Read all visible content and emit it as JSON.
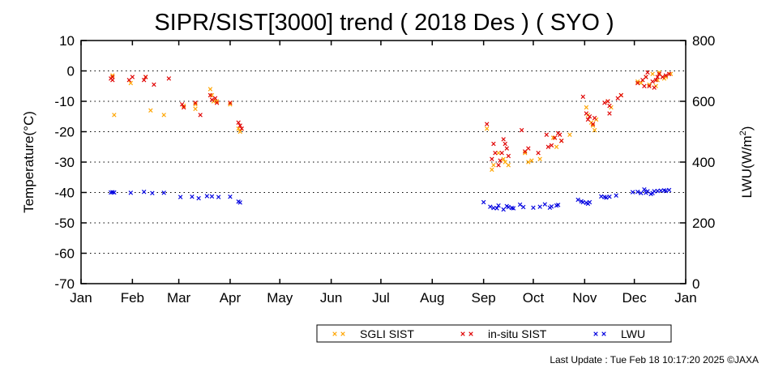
{
  "chart_data": {
    "type": "scatter",
    "title": "SIPR/SIST[3000] trend ( 2018 Des ) ( SYO )",
    "ylabel": "Temperature(°C)",
    "ylabel_right_prefix": "LWU(W/m",
    "ylabel_right_sup": "2",
    "ylabel_right_suffix": ")",
    "ylim": [
      -70,
      10
    ],
    "y2lim": [
      0,
      800
    ],
    "xlim": [
      0,
      365
    ],
    "y_ticks": [
      "10",
      "0",
      "-10",
      "-20",
      "-30",
      "-40",
      "-50",
      "-60",
      "-70"
    ],
    "y2_ticks": [
      "800",
      "600",
      "400",
      "200",
      "0"
    ],
    "months": [
      "Jan",
      "Feb",
      "Mar",
      "Apr",
      "May",
      "Jun",
      "Jul",
      "Aug",
      "Sep",
      "Oct",
      "Nov",
      "Dec",
      "Jan"
    ],
    "grid": true,
    "legend_position": "bottom",
    "series": [
      {
        "name": "SGLI SIST",
        "color": "#ffa500",
        "axis": "left",
        "points": [
          [
            19,
            -1.5
          ],
          [
            20,
            -14.5
          ],
          [
            30,
            -4
          ],
          [
            39,
            -2
          ],
          [
            42,
            -13
          ],
          [
            50,
            -14.5
          ],
          [
            62,
            -11.5
          ],
          [
            69,
            -11
          ],
          [
            69,
            -12.5
          ],
          [
            78,
            -6
          ],
          [
            79,
            -8
          ],
          [
            80,
            -10
          ],
          [
            82,
            -10
          ],
          [
            90,
            -11
          ],
          [
            95,
            -19
          ],
          [
            96,
            -20
          ],
          [
            245,
            -19
          ],
          [
            248,
            -32.5
          ],
          [
            249,
            -31
          ],
          [
            252,
            -27
          ],
          [
            255,
            -29
          ],
          [
            256,
            -30
          ],
          [
            258,
            -31
          ],
          [
            268,
            -27
          ],
          [
            270,
            -30
          ],
          [
            272,
            -29.5
          ],
          [
            277,
            -29
          ],
          [
            285,
            -22
          ],
          [
            287,
            -25
          ],
          [
            290,
            -23
          ],
          [
            295,
            -21
          ],
          [
            305,
            -12
          ],
          [
            306,
            -14.5
          ],
          [
            308,
            -17
          ],
          [
            309,
            -18
          ],
          [
            310,
            -19.5
          ],
          [
            311,
            -16
          ],
          [
            318,
            -10
          ],
          [
            320,
            -12
          ],
          [
            326,
            -8
          ],
          [
            336,
            -3.5
          ],
          [
            338,
            -4
          ],
          [
            341,
            -2
          ],
          [
            343,
            -4.5
          ],
          [
            345,
            -1
          ],
          [
            347,
            -5
          ],
          [
            348,
            -3
          ],
          [
            349,
            -0.5
          ],
          [
            351,
            -2
          ],
          [
            352,
            -2.5
          ],
          [
            353,
            -2
          ],
          [
            356,
            -1
          ]
        ]
      },
      {
        "name": "in-situ SIST",
        "color": "#e00000",
        "axis": "left",
        "points": [
          [
            18,
            -2.5
          ],
          [
            19,
            -2
          ],
          [
            19,
            -3
          ],
          [
            29,
            -3
          ],
          [
            31,
            -2
          ],
          [
            38,
            -3
          ],
          [
            39,
            -2
          ],
          [
            44,
            -4.5
          ],
          [
            53,
            -2.5
          ],
          [
            61,
            -11
          ],
          [
            62,
            -12
          ],
          [
            69,
            -10.5
          ],
          [
            72,
            -14.5
          ],
          [
            78,
            -8
          ],
          [
            79,
            -9.5
          ],
          [
            81,
            -9
          ],
          [
            82,
            -10.5
          ],
          [
            90,
            -10.5
          ],
          [
            95,
            -17
          ],
          [
            96,
            -18
          ],
          [
            97,
            -19
          ],
          [
            245,
            -17.5
          ],
          [
            248,
            -29
          ],
          [
            249,
            -24
          ],
          [
            250,
            -27
          ],
          [
            252,
            -31
          ],
          [
            253,
            -29.5
          ],
          [
            254,
            -27
          ],
          [
            255,
            -22.5
          ],
          [
            256,
            -24
          ],
          [
            257,
            -25.5
          ],
          [
            258,
            -28
          ],
          [
            266,
            -19.5
          ],
          [
            268,
            -26.5
          ],
          [
            270,
            -25.5
          ],
          [
            276,
            -27
          ],
          [
            281,
            -21
          ],
          [
            282,
            -25
          ],
          [
            284,
            -24.5
          ],
          [
            286,
            -22
          ],
          [
            288,
            -20.5
          ],
          [
            289,
            -21
          ],
          [
            290,
            -23
          ],
          [
            303,
            -8.5
          ],
          [
            305,
            -14
          ],
          [
            306,
            -16
          ],
          [
            307,
            -15
          ],
          [
            309,
            -17.5
          ],
          [
            310,
            -15.5
          ],
          [
            316,
            -10.5
          ],
          [
            318,
            -10
          ],
          [
            319,
            -11.5
          ],
          [
            319,
            -14
          ],
          [
            324,
            -9
          ],
          [
            326,
            -8
          ],
          [
            336,
            -4
          ],
          [
            339,
            -3
          ],
          [
            340,
            -5
          ],
          [
            341,
            -2
          ],
          [
            342,
            -0.5
          ],
          [
            343,
            -5
          ],
          [
            345,
            -3.5
          ],
          [
            346,
            -5.5
          ],
          [
            347,
            -3
          ],
          [
            348,
            -2
          ],
          [
            349,
            -1
          ],
          [
            351,
            -2
          ],
          [
            353,
            -1.5
          ],
          [
            355,
            -1
          ]
        ]
      },
      {
        "name": "LWU",
        "color": "#0000e0",
        "axis": "right",
        "points": [
          [
            18,
            300
          ],
          [
            19,
            301
          ],
          [
            20,
            300
          ],
          [
            30,
            299
          ],
          [
            38,
            302
          ],
          [
            43,
            298
          ],
          [
            50,
            299
          ],
          [
            60,
            285
          ],
          [
            67,
            286
          ],
          [
            71,
            281
          ],
          [
            76,
            288
          ],
          [
            79,
            287
          ],
          [
            83,
            285
          ],
          [
            90,
            286
          ],
          [
            95,
            270
          ],
          [
            96,
            267
          ],
          [
            243,
            268
          ],
          [
            247,
            253
          ],
          [
            249,
            249
          ],
          [
            251,
            248
          ],
          [
            252,
            257
          ],
          [
            255,
            244
          ],
          [
            257,
            255
          ],
          [
            258,
            252
          ],
          [
            260,
            249
          ],
          [
            261,
            248
          ],
          [
            265,
            260
          ],
          [
            267,
            252
          ],
          [
            273,
            250
          ],
          [
            277,
            253
          ],
          [
            280,
            261
          ],
          [
            283,
            250
          ],
          [
            284,
            254
          ],
          [
            287,
            257
          ],
          [
            288,
            259
          ],
          [
            300,
            276
          ],
          [
            302,
            271
          ],
          [
            303,
            268
          ],
          [
            305,
            266
          ],
          [
            306,
            263
          ],
          [
            307,
            268
          ],
          [
            314,
            287
          ],
          [
            316,
            285
          ],
          [
            317,
            283
          ],
          [
            319,
            286
          ],
          [
            323,
            290
          ],
          [
            333,
            301
          ],
          [
            336,
            302
          ],
          [
            338,
            298
          ],
          [
            340,
            310
          ],
          [
            341,
            299
          ],
          [
            342,
            304
          ],
          [
            344,
            295
          ],
          [
            345,
            298
          ],
          [
            346,
            304
          ],
          [
            348,
            305
          ],
          [
            350,
            306
          ],
          [
            352,
            307
          ],
          [
            353,
            305
          ],
          [
            355,
            308
          ]
        ]
      }
    ]
  },
  "footer": {
    "last_update": "Last Update : Tue Feb 18 10:17:20 2025  ©JAXA"
  }
}
